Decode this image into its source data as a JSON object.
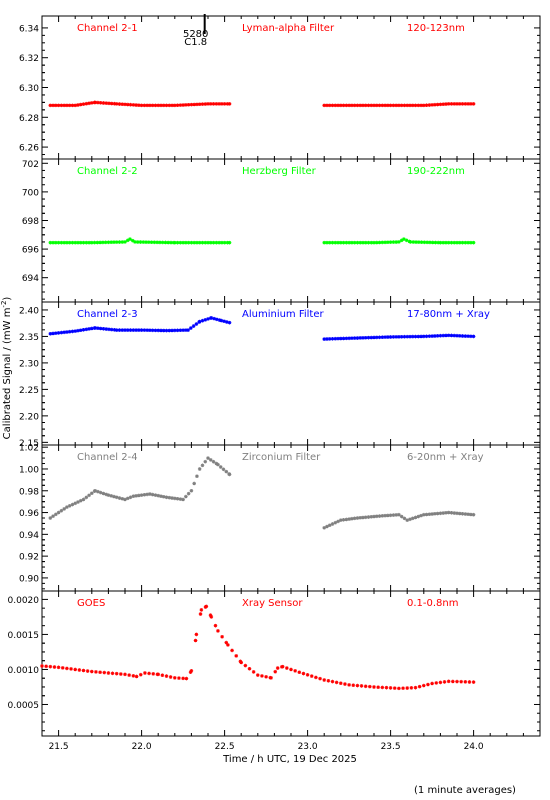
{
  "figure": {
    "ylabel": "Calibrated Signal / (mW m^-2)",
    "xlabel": "Time / h UTC, 19 Dec 2025",
    "footnote": "(1 minute averages)",
    "event_marker": {
      "x": 22.38,
      "label_top": "5280",
      "label_bottom": "C1.8"
    }
  },
  "chart_data": [
    {
      "type": "scatter",
      "channel": "Channel 2-1",
      "filter": "Lyman-alpha Filter",
      "band": "120-123nm",
      "color": "#ff0000",
      "xlim": [
        21.4,
        24.4
      ],
      "ylim": [
        6.252,
        6.348
      ],
      "yticks": [
        6.26,
        6.28,
        6.3,
        6.32,
        6.34
      ],
      "ytick_labels": [
        "6.26",
        "6.28",
        "6.30",
        "6.32",
        "6.34"
      ],
      "segments": [
        {
          "x": [
            21.45,
            21.6,
            21.72,
            21.85,
            22.0,
            22.2,
            22.4,
            22.53
          ],
          "y": [
            6.288,
            6.288,
            6.29,
            6.289,
            6.288,
            6.288,
            6.289,
            6.289
          ]
        },
        {
          "x": [
            23.1,
            23.3,
            23.5,
            23.7,
            23.85,
            24.0
          ],
          "y": [
            6.288,
            6.288,
            6.288,
            6.288,
            6.289,
            6.289
          ]
        }
      ]
    },
    {
      "type": "scatter",
      "channel": "Channel 2-2",
      "filter": "Herzberg Filter",
      "band": "190-222nm",
      "color": "#00ff00",
      "xlim": [
        21.4,
        24.4
      ],
      "ylim": [
        692.3,
        702.3
      ],
      "yticks": [
        694,
        696,
        698,
        700,
        702
      ],
      "ytick_labels": [
        "694",
        "696",
        "698",
        "700",
        "702"
      ],
      "segments": [
        {
          "x": [
            21.45,
            21.7,
            21.9,
            21.93,
            21.96,
            22.2,
            22.53
          ],
          "y": [
            696.45,
            696.45,
            696.5,
            696.7,
            696.5,
            696.45,
            696.45
          ]
        },
        {
          "x": [
            23.1,
            23.4,
            23.55,
            23.58,
            23.62,
            23.8,
            24.0
          ],
          "y": [
            696.45,
            696.45,
            696.5,
            696.7,
            696.5,
            696.45,
            696.45
          ]
        }
      ]
    },
    {
      "type": "scatter",
      "channel": "Channel 2-3",
      "filter": "Aluminium Filter",
      "band": "17-80nm + Xray",
      "color": "#0000ff",
      "xlim": [
        21.4,
        24.4
      ],
      "ylim": [
        2.145,
        2.415
      ],
      "yticks": [
        2.15,
        2.2,
        2.25,
        2.3,
        2.35,
        2.4
      ],
      "ytick_labels": [
        "2.15",
        "2.20",
        "2.25",
        "2.30",
        "2.35",
        "2.40"
      ],
      "segments": [
        {
          "x": [
            21.45,
            21.6,
            21.72,
            21.85,
            22.0,
            22.15,
            22.28,
            22.35,
            22.42,
            22.48,
            22.53
          ],
          "y": [
            2.355,
            2.36,
            2.366,
            2.362,
            2.362,
            2.361,
            2.362,
            2.378,
            2.385,
            2.38,
            2.376
          ]
        },
        {
          "x": [
            23.1,
            23.3,
            23.5,
            23.7,
            23.85,
            24.0
          ],
          "y": [
            2.345,
            2.347,
            2.349,
            2.35,
            2.352,
            2.35
          ]
        }
      ]
    },
    {
      "type": "scatter",
      "channel": "Channel 2-4",
      "filter": "Zirconium Filter",
      "band": "6-20nm + Xray",
      "color": "#808080",
      "xlim": [
        21.4,
        24.4
      ],
      "ylim": [
        0.888,
        1.022
      ],
      "yticks": [
        0.9,
        0.92,
        0.94,
        0.96,
        0.98,
        1.0,
        1.02
      ],
      "ytick_labels": [
        "0.90",
        "0.92",
        "0.94",
        "0.96",
        "0.98",
        "1.00",
        "1.02"
      ],
      "segments": [
        {
          "x": [
            21.45,
            21.55,
            21.65,
            21.72,
            21.8,
            21.9,
            21.95,
            22.05,
            22.15,
            22.25,
            22.3,
            22.35,
            22.4,
            22.46,
            22.53
          ],
          "y": [
            0.955,
            0.965,
            0.972,
            0.98,
            0.976,
            0.972,
            0.975,
            0.977,
            0.974,
            0.972,
            0.98,
            1.0,
            1.01,
            1.004,
            0.995
          ]
        },
        {
          "x": [
            23.1,
            23.2,
            23.3,
            23.45,
            23.55,
            23.6,
            23.7,
            23.85,
            24.0
          ],
          "y": [
            0.946,
            0.953,
            0.955,
            0.957,
            0.958,
            0.953,
            0.958,
            0.96,
            0.958
          ]
        }
      ]
    },
    {
      "type": "scatter",
      "channel": "GOES",
      "filter": "Xray Sensor",
      "band": "0.1-0.8nm",
      "color": "#ff0000",
      "xlim": [
        21.4,
        24.4
      ],
      "ylim": [
        5e-05,
        0.00212
      ],
      "yticks": [
        0.0005,
        0.001,
        0.0015,
        0.002
      ],
      "ytick_labels": [
        "0.0005",
        "0.0010",
        "0.0015",
        "0.0020"
      ],
      "segments": [
        {
          "x": [
            21.4,
            21.5,
            21.6,
            21.7,
            21.8,
            21.9,
            21.97,
            22.02,
            22.1,
            22.2,
            22.27,
            22.3,
            22.33,
            22.36,
            22.39,
            22.42,
            22.46,
            22.52,
            22.6,
            22.7,
            22.78,
            22.82,
            22.85,
            22.95,
            23.1,
            23.25,
            23.4,
            23.55,
            23.65,
            23.75,
            23.85,
            24.0
          ],
          "y": [
            0.00105,
            0.00103,
            0.001,
            0.00097,
            0.00095,
            0.00093,
            0.0009,
            0.00095,
            0.00093,
            0.00088,
            0.00087,
            0.00098,
            0.0015,
            0.00185,
            0.0019,
            0.00175,
            0.00155,
            0.00135,
            0.0011,
            0.00092,
            0.00088,
            0.00102,
            0.00104,
            0.00096,
            0.00085,
            0.00078,
            0.00075,
            0.00073,
            0.00074,
            0.0008,
            0.00083,
            0.00082
          ]
        }
      ]
    }
  ],
  "xaxis": {
    "xlim": [
      21.4,
      24.4
    ],
    "ticks": [
      21.5,
      22.0,
      22.5,
      23.0,
      23.5,
      24.0
    ],
    "tick_labels": [
      "21.5",
      "22.0",
      "22.5",
      "23.0",
      "23.5",
      "24.0"
    ]
  }
}
